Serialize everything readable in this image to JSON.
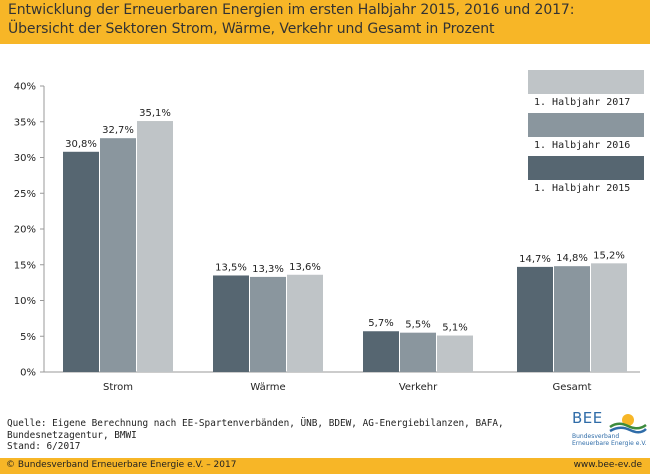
{
  "header": {
    "line1": "Entwicklung der Erneuerbaren Energien im ersten Halbjahr 2015, 2016 und 2017:",
    "line2": "Übersicht der Sektoren Strom, Wärme, Verkehr und Gesamt in Prozent"
  },
  "chart_data": {
    "type": "bar",
    "categories": [
      "Strom",
      "Wärme",
      "Verkehr",
      "Gesamt"
    ],
    "series": [
      {
        "name": "1. Halbjahr 2015",
        "values": [
          30.8,
          13.5,
          5.7,
          14.7
        ],
        "labels": [
          "30,8%",
          "13,5%",
          "5,7%",
          "14,7%"
        ],
        "color": "#566671"
      },
      {
        "name": "1. Halbjahr 2016",
        "values": [
          32.7,
          13.3,
          5.5,
          14.8
        ],
        "labels": [
          "32,7%",
          "13,3%",
          "5,5%",
          "14,8%"
        ],
        "color": "#8a969e"
      },
      {
        "name": "1. Halbjahr 2017",
        "values": [
          35.1,
          13.6,
          5.1,
          15.2
        ],
        "labels": [
          "35,1%",
          "13,6%",
          "5,1%",
          "15,2%"
        ],
        "color": "#bfc4c7"
      }
    ],
    "legend_order": [
      "1. Halbjahr 2017",
      "1. Halbjahr 2016",
      "1. Halbjahr 2015"
    ],
    "yticks": [
      "0%",
      "5%",
      "10%",
      "15%",
      "20%",
      "25%",
      "30%",
      "35%",
      "40%"
    ],
    "ylim": [
      0,
      40
    ],
    "grid": false,
    "legend_position": "top-right"
  },
  "source": {
    "line1": "Quelle: Eigene Berechnung nach EE-Spartenverbänden, ÜNB, BDEW, AG-Energiebilanzen, BAFA,",
    "line2": "Bundesnetzagentur, BMWI",
    "line3": "Stand: 6/2017"
  },
  "logo": {
    "name": "BEE",
    "sub1": "Bundesverband",
    "sub2": "Erneuerbare Energie e.V."
  },
  "footer": {
    "copyright": "© Bundesverband Erneuerbare Energie e.V. – 2017",
    "url": "www.bee-ev.de"
  }
}
